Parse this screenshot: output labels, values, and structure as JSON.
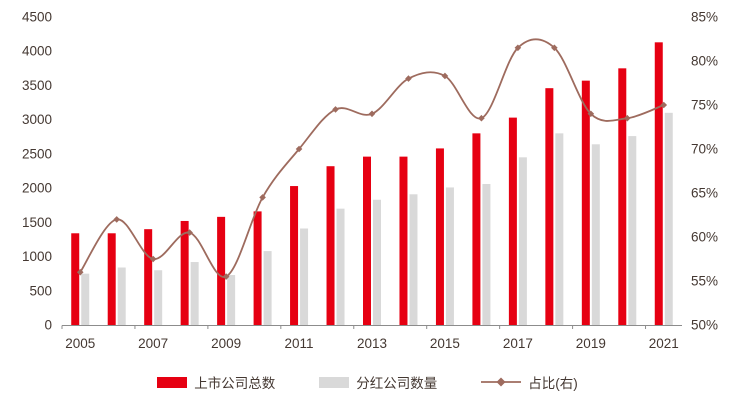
{
  "chart_data": {
    "type": "bar",
    "title": "",
    "categories": [
      "2005",
      "2006",
      "2007",
      "2008",
      "2009",
      "2010",
      "2011",
      "2012",
      "2013",
      "2014",
      "2015",
      "2016",
      "2017",
      "2018",
      "2019",
      "2020",
      "2021"
    ],
    "series": [
      {
        "name": "上市公司总数",
        "type": "bar",
        "axis": "left",
        "color": "#e60012",
        "values": [
          1340,
          1340,
          1400,
          1520,
          1580,
          1660,
          2030,
          2320,
          2460,
          2460,
          2580,
          2800,
          3030,
          3460,
          3570,
          3750,
          4130
        ]
      },
      {
        "name": "分红公司数量",
        "type": "bar",
        "axis": "left",
        "color": "#d9d9d9",
        "values": [
          750,
          840,
          800,
          920,
          730,
          1080,
          1410,
          1700,
          1830,
          1910,
          2010,
          2060,
          2450,
          2800,
          2640,
          2760,
          3100
        ]
      },
      {
        "name": "占比(右)",
        "type": "line",
        "axis": "right",
        "color": "#9e6b5e",
        "values": [
          56,
          62,
          57.5,
          60.5,
          55.5,
          64.5,
          70,
          74.5,
          74,
          78,
          78.3,
          73.5,
          81.5,
          81.5,
          74,
          73.5,
          75
        ]
      }
    ],
    "left_axis": {
      "min": 0,
      "max": 4500,
      "step": 500
    },
    "right_axis": {
      "min": 50,
      "max": 85,
      "step": 5,
      "suffix": "%"
    },
    "x_label_interval": 2,
    "legend_position": "bottom",
    "grid": false
  }
}
